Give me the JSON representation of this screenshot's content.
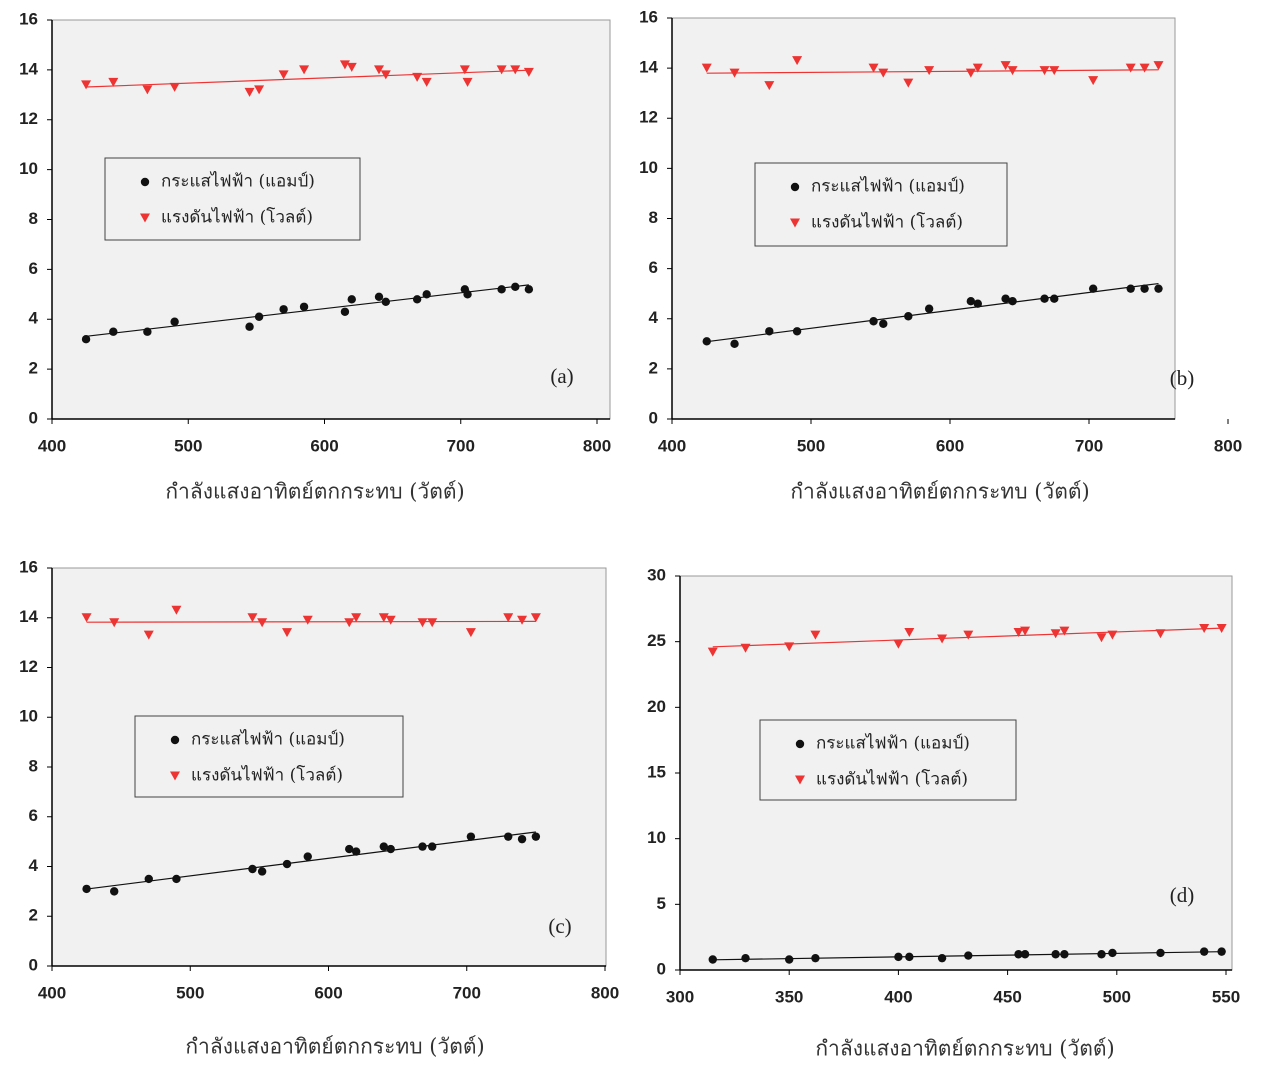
{
  "chart_data": [
    {
      "type": "scatter",
      "panel_label": "(a)",
      "xlabel": "กำลังแสงอาทิตย์ตกกระทบ (วัตต์)",
      "x": [
        425,
        445,
        470,
        490,
        545,
        552,
        570,
        585,
        615,
        620,
        640,
        645,
        668,
        675,
        703,
        705,
        730,
        740,
        750
      ],
      "series": [
        {
          "name": "กระแสไฟฟ้า (แอมป์)",
          "color": "#111111",
          "marker": "circle",
          "values": [
            3.2,
            3.5,
            3.5,
            3.9,
            3.7,
            4.1,
            4.4,
            4.5,
            4.3,
            4.8,
            4.9,
            4.7,
            4.8,
            5.0,
            5.2,
            5.0,
            5.2,
            5.3,
            5.2
          ]
        },
        {
          "name": "แรงดันไฟฟ้า (โวลต์)",
          "color": "#ee3333",
          "marker": "triangle-down",
          "values": [
            13.4,
            13.5,
            13.2,
            13.3,
            13.1,
            13.2,
            13.8,
            14.0,
            14.2,
            14.1,
            14.0,
            13.8,
            13.7,
            13.5,
            14.0,
            13.5,
            14.0,
            14.0,
            13.9
          ]
        }
      ],
      "xlim": [
        400,
        800
      ],
      "xticks": [
        400,
        500,
        600,
        700,
        800
      ],
      "ylim": [
        0,
        16
      ],
      "yticks": [
        0,
        2,
        4,
        6,
        8,
        10,
        12,
        14,
        16
      ],
      "trendline": true
    },
    {
      "type": "scatter",
      "panel_label": "(b)",
      "xlabel": "กำลังแสงอาทิตย์ตกกระทบ (วัตต์)",
      "x": [
        425,
        445,
        470,
        490,
        545,
        552,
        570,
        585,
        615,
        620,
        640,
        645,
        668,
        675,
        703,
        730,
        740,
        750
      ],
      "series": [
        {
          "name": "กระแสไฟฟ้า (แอมป์)",
          "color": "#111111",
          "marker": "circle",
          "values": [
            3.1,
            3.0,
            3.5,
            3.5,
            3.9,
            3.8,
            4.1,
            4.4,
            4.7,
            4.6,
            4.8,
            4.7,
            4.8,
            4.8,
            5.2,
            5.2,
            5.2,
            5.2
          ]
        },
        {
          "name": "แรงดันไฟฟ้า (โวลต์)",
          "color": "#ee3333",
          "marker": "triangle-down",
          "values": [
            14.0,
            13.8,
            13.3,
            14.3,
            14.0,
            13.8,
            13.4,
            13.9,
            13.8,
            14.0,
            14.1,
            13.9,
            13.9,
            13.9,
            13.5,
            14.0,
            14.0,
            14.1
          ]
        }
      ],
      "xlim": [
        400,
        800
      ],
      "xticks": [
        400,
        500,
        600,
        700,
        800
      ],
      "ylim": [
        0,
        16
      ],
      "yticks": [
        0,
        2,
        4,
        6,
        8,
        10,
        12,
        14,
        16
      ],
      "trendline": true
    },
    {
      "type": "scatter",
      "panel_label": "(c)",
      "xlabel": "กำลังแสงอาทิตย์ตกกระทบ (วัตต์)",
      "x": [
        425,
        445,
        470,
        490,
        545,
        552,
        570,
        585,
        615,
        620,
        640,
        645,
        668,
        675,
        703,
        730,
        740,
        750
      ],
      "series": [
        {
          "name": "กระแสไฟฟ้า (แอมป์)",
          "color": "#111111",
          "marker": "circle",
          "values": [
            3.1,
            3.0,
            3.5,
            3.5,
            3.9,
            3.8,
            4.1,
            4.4,
            4.7,
            4.6,
            4.8,
            4.7,
            4.8,
            4.8,
            5.2,
            5.2,
            5.1,
            5.2
          ]
        },
        {
          "name": "แรงดันไฟฟ้า (โวลต์)",
          "color": "#ee3333",
          "marker": "triangle-down",
          "values": [
            14.0,
            13.8,
            13.3,
            14.3,
            14.0,
            13.8,
            13.4,
            13.9,
            13.8,
            14.0,
            14.0,
            13.9,
            13.8,
            13.8,
            13.4,
            14.0,
            13.9,
            14.0
          ]
        }
      ],
      "xlim": [
        400,
        800
      ],
      "xticks": [
        400,
        500,
        600,
        700,
        800
      ],
      "ylim": [
        0,
        16
      ],
      "yticks": [
        0,
        2,
        4,
        6,
        8,
        10,
        12,
        14,
        16
      ],
      "trendline": true
    },
    {
      "type": "scatter",
      "panel_label": "(d)",
      "xlabel": "กำลังแสงอาทิตย์ตกกระทบ (วัตต์)",
      "x": [
        315,
        330,
        350,
        362,
        400,
        405,
        420,
        432,
        455,
        458,
        472,
        476,
        493,
        498,
        520,
        540,
        548
      ],
      "series": [
        {
          "name": "กระแสไฟฟ้า (แอมป์)",
          "color": "#111111",
          "marker": "circle",
          "values": [
            0.8,
            0.9,
            0.8,
            0.9,
            1.0,
            1.0,
            0.9,
            1.1,
            1.2,
            1.2,
            1.2,
            1.2,
            1.2,
            1.3,
            1.3,
            1.4,
            1.4
          ]
        },
        {
          "name": "แรงดันไฟฟ้า (โวลต์)",
          "color": "#ee3333",
          "marker": "triangle-down",
          "values": [
            24.2,
            24.5,
            24.6,
            25.5,
            24.8,
            25.7,
            25.2,
            25.5,
            25.7,
            25.8,
            25.6,
            25.8,
            25.3,
            25.5,
            25.6,
            26.0,
            26.0
          ]
        }
      ],
      "xlim": [
        300,
        550
      ],
      "xticks": [
        300,
        350,
        400,
        450,
        500,
        550
      ],
      "ylim": [
        0,
        30
      ],
      "yticks": [
        0,
        5,
        10,
        15,
        20,
        25,
        30
      ],
      "trendline": true
    }
  ]
}
